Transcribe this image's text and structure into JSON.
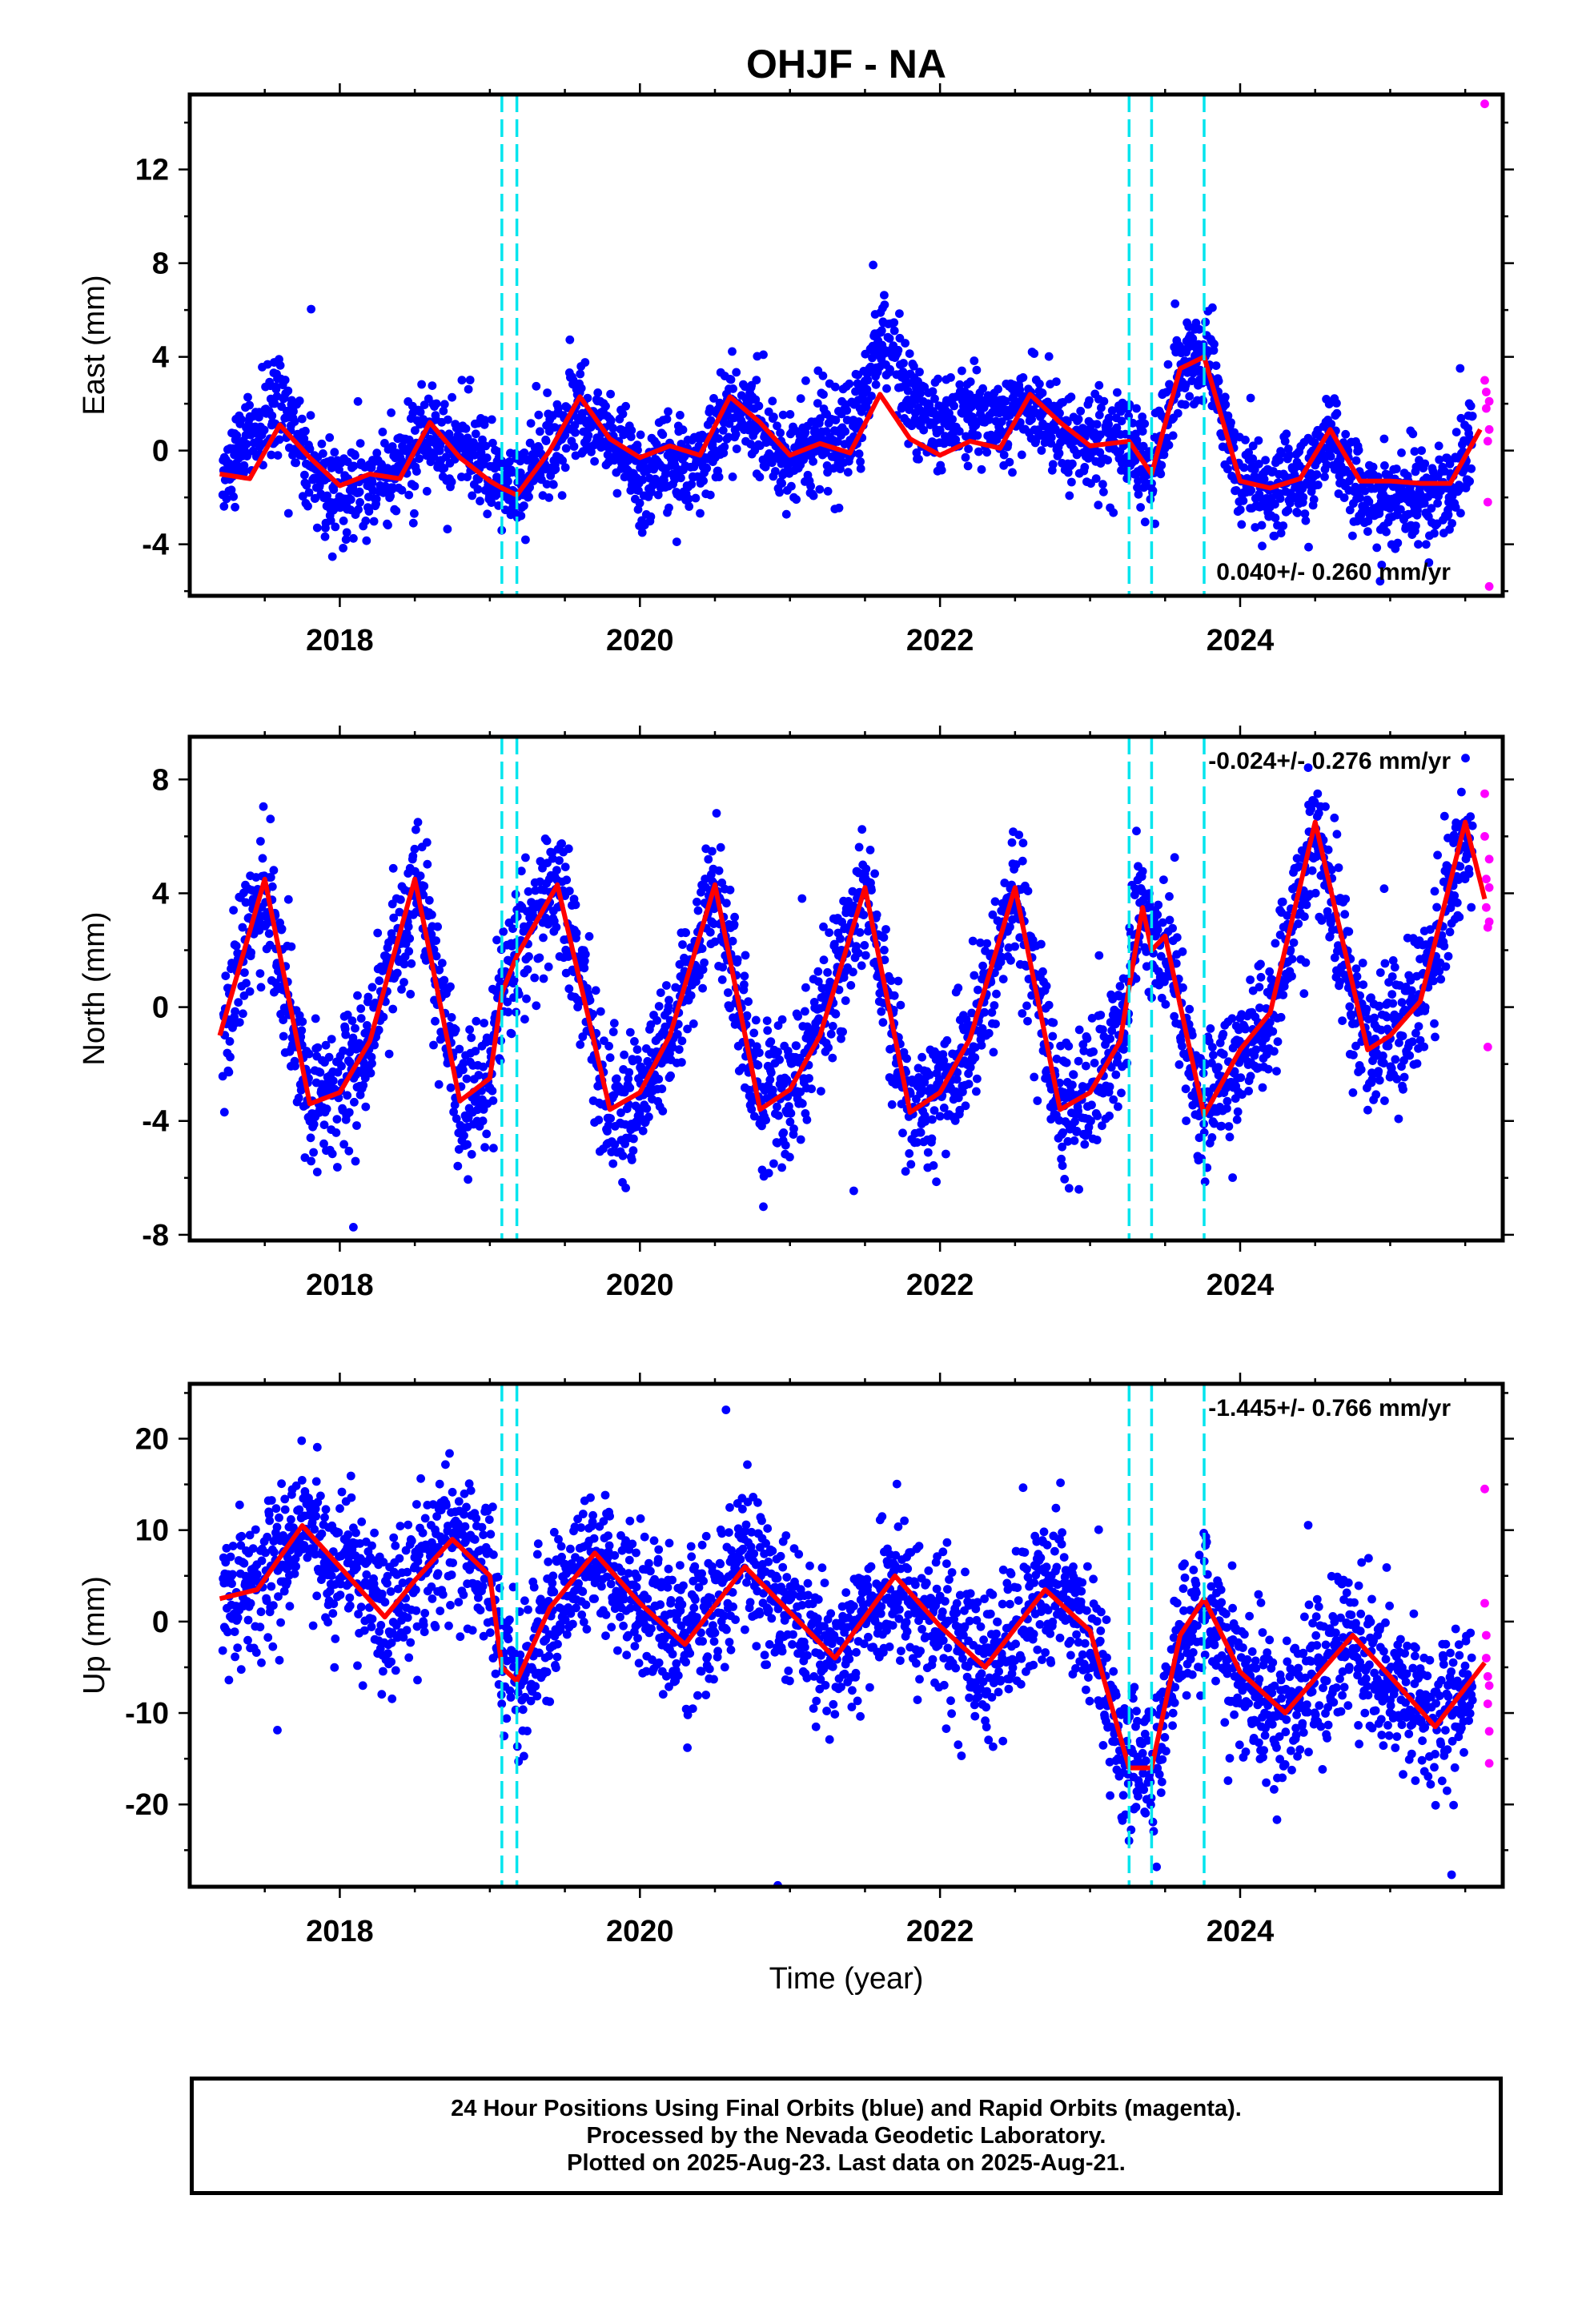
{
  "chart_data": {
    "type": "scatter",
    "title": "OHJF - NA",
    "xlabel": "Time (year)",
    "x_range": [
      2017.0,
      2025.75
    ],
    "x_ticks": [
      "2018",
      "2020",
      "2022",
      "2024"
    ],
    "colors": {
      "final": "#0000ff",
      "rapid": "#ff00ff",
      "model": "#ff0000",
      "event": "#00e5ee"
    },
    "events": [
      2019.08,
      2019.18,
      2023.26,
      2023.41,
      2023.76
    ],
    "grid": false,
    "panels": [
      {
        "component": "East",
        "ylabel": "East (mm)",
        "ylim": [
          -6.2,
          15.2
        ],
        "yticks": [
          "12",
          "8",
          "4",
          "0",
          "-4"
        ],
        "ytick_values": [
          12,
          8,
          4,
          0,
          -4
        ],
        "rate": "0.040+/- 0.260 mm/yr",
        "rate_position": "bottom-right",
        "model": {
          "t": [
            2017.2,
            2017.4,
            2017.6,
            2017.8,
            2018.0,
            2018.2,
            2018.4,
            2018.6,
            2018.8,
            2019.0,
            2019.08,
            2019.18,
            2019.4,
            2019.6,
            2019.8,
            2020.0,
            2020.2,
            2020.4,
            2020.6,
            2020.8,
            2021.0,
            2021.2,
            2021.4,
            2021.6,
            2021.8,
            2022.0,
            2022.2,
            2022.4,
            2022.6,
            2022.8,
            2023.0,
            2023.26,
            2023.41,
            2023.6,
            2023.76,
            2024.0,
            2024.2,
            2024.4,
            2024.6,
            2024.8,
            2025.0,
            2025.2,
            2025.4,
            2025.6
          ],
          "y": [
            -1.0,
            -1.2,
            1.1,
            -0.3,
            -1.5,
            -1.0,
            -1.2,
            1.2,
            -0.3,
            -1.3,
            -1.6,
            -1.9,
            0.0,
            2.3,
            0.5,
            -0.3,
            0.2,
            -0.2,
            2.3,
            1.2,
            -0.2,
            0.3,
            -0.1,
            2.4,
            0.5,
            -0.2,
            0.4,
            0.1,
            2.4,
            1.2,
            0.2,
            0.4,
            -1.0,
            3.5,
            4.0,
            -1.3,
            -1.6,
            -1.2,
            0.9,
            -1.3,
            -1.3,
            -1.4,
            -1.4,
            0.9
          ]
        },
        "final_anchor": {
          "t": [
            2017.2,
            2017.4,
            2017.6,
            2017.8,
            2018.0,
            2018.2,
            2018.4,
            2018.6,
            2018.8,
            2019.0,
            2019.08,
            2019.18,
            2019.4,
            2019.6,
            2019.8,
            2020.0,
            2020.2,
            2020.4,
            2020.6,
            2020.8,
            2021.0,
            2021.2,
            2021.4,
            2021.6,
            2021.8,
            2022.0,
            2022.2,
            2022.4,
            2022.6,
            2022.8,
            2023.0,
            2023.26,
            2023.41,
            2023.6,
            2023.76,
            2024.0,
            2024.2,
            2024.4,
            2024.6,
            2024.8,
            2025.0,
            2025.2,
            2025.4,
            2025.6
          ],
          "y": [
            -1.0,
            0.5,
            2.2,
            -0.5,
            -2.0,
            -1.2,
            -1.0,
            1.0,
            0.3,
            -1.0,
            -1.6,
            -1.4,
            0.3,
            1.8,
            0.3,
            -1.0,
            -0.8,
            -0.6,
            1.9,
            0.9,
            -0.4,
            0.5,
            0.8,
            4.8,
            2.0,
            1.0,
            1.8,
            1.2,
            2.2,
            1.0,
            0.3,
            0.4,
            -1.0,
            3.5,
            4.0,
            -1.2,
            -1.6,
            -1.4,
            0.8,
            -1.8,
            -2.0,
            -1.6,
            -1.8,
            0.9
          ]
        },
        "scatter_spread": 1.0,
        "rapid": {
          "t": [
            2025.63,
            2025.63,
            2025.64,
            2025.64,
            2025.65,
            2025.65,
            2025.66,
            2025.66,
            2025.66
          ],
          "y": [
            14.8,
            3.0,
            2.5,
            1.8,
            0.4,
            -2.2,
            2.1,
            0.9,
            -5.8
          ]
        }
      },
      {
        "component": "North",
        "ylabel": "North (mm)",
        "ylim": [
          -8.2,
          9.5
        ],
        "yticks": [
          "8",
          "4",
          "0",
          "-4",
          "-8"
        ],
        "ytick_values": [
          8,
          4,
          0,
          -4,
          -8
        ],
        "rate": "-0.024+/- 0.276 mm/yr",
        "rate_position": "top-right",
        "model": {
          "t": [
            2017.2,
            2017.5,
            2017.8,
            2018.0,
            2018.2,
            2018.5,
            2018.8,
            2019.0,
            2019.08,
            2019.18,
            2019.45,
            2019.8,
            2020.0,
            2020.2,
            2020.5,
            2020.8,
            2021.0,
            2021.2,
            2021.5,
            2021.8,
            2022.0,
            2022.2,
            2022.5,
            2022.8,
            2023.0,
            2023.2,
            2023.26,
            2023.35,
            2023.41,
            2023.5,
            2023.76,
            2024.0,
            2024.2,
            2024.5,
            2024.85,
            2025.0,
            2025.2,
            2025.5,
            2025.63
          ],
          "y": [
            -1.0,
            4.5,
            -3.4,
            -3.0,
            -1.2,
            4.5,
            -3.3,
            -2.5,
            0.5,
            1.8,
            4.3,
            -3.6,
            -3.0,
            -1.0,
            4.3,
            -3.6,
            -2.9,
            -1.0,
            4.2,
            -3.7,
            -3.0,
            -1.1,
            4.2,
            -3.6,
            -3.0,
            -1.2,
            0.7,
            3.5,
            2.0,
            2.5,
            -3.8,
            -1.5,
            -0.2,
            6.5,
            -1.5,
            -1.0,
            0.2,
            6.5,
            3.8
          ]
        },
        "scatter_spread": 1.2,
        "rapid": {
          "t": [
            2025.63,
            2025.63,
            2025.64,
            2025.64,
            2025.65,
            2025.65,
            2025.66,
            2025.66,
            2025.66
          ],
          "y": [
            7.5,
            6.0,
            4.5,
            3.5,
            2.8,
            -1.4,
            5.2,
            3.0,
            4.2
          ]
        }
      },
      {
        "component": "Up",
        "ylabel": "Up (mm)",
        "ylim": [
          -29,
          26
        ],
        "yticks": [
          "20",
          "10",
          "0",
          "-10",
          "-20"
        ],
        "ytick_values": [
          20,
          10,
          0,
          -10,
          -20
        ],
        "rate": "-1.445+/- 0.766 mm/yr",
        "rate_position": "top-right",
        "model": {
          "t": [
            2017.2,
            2017.45,
            2017.75,
            2018.0,
            2018.3,
            2018.5,
            2018.75,
            2019.0,
            2019.08,
            2019.18,
            2019.4,
            2019.7,
            2020.0,
            2020.3,
            2020.7,
            2021.0,
            2021.3,
            2021.7,
            2022.0,
            2022.3,
            2022.7,
            2023.0,
            2023.26,
            2023.41,
            2023.6,
            2023.76,
            2024.0,
            2024.3,
            2024.75,
            2025.0,
            2025.3,
            2025.63
          ],
          "y": [
            2.5,
            3.5,
            10.5,
            6.0,
            0.5,
            4.5,
            9.0,
            5.0,
            -5.0,
            -6.5,
            1.5,
            7.5,
            2.0,
            -2.5,
            6.0,
            1.0,
            -4.0,
            5.0,
            -0.5,
            -5.0,
            3.5,
            -1.0,
            -16.0,
            -16.0,
            -1.5,
            2.5,
            -5.5,
            -10.0,
            -1.5,
            -6.0,
            -11.5,
            -4.5
          ]
        },
        "scatter_spread": 4.0,
        "rapid": {
          "t": [
            2025.63,
            2025.63,
            2025.64,
            2025.64,
            2025.65,
            2025.65,
            2025.66,
            2025.66,
            2025.66
          ],
          "y": [
            14.5,
            2.0,
            -1.5,
            -4.0,
            -6.0,
            -9.0,
            -12.0,
            -15.5,
            -7.0
          ]
        }
      }
    ]
  },
  "caption": {
    "line1": "24 Hour Positions Using Final Orbits (blue) and Rapid Orbits (magenta).",
    "line2": "Processed by the Nevada Geodetic Laboratory.",
    "line3": "Plotted on 2025-Aug-23. Last data on 2025-Aug-21."
  }
}
